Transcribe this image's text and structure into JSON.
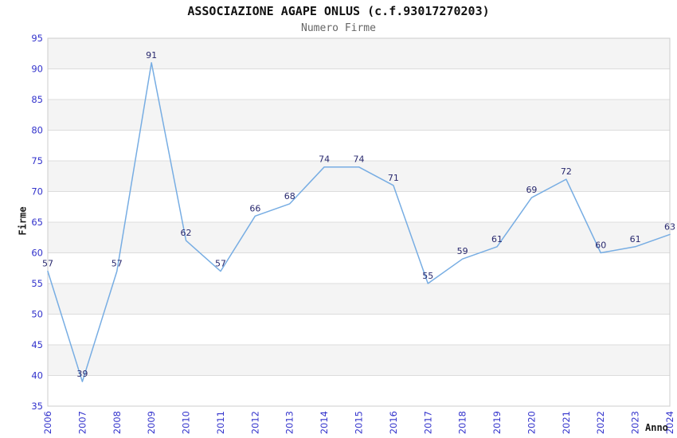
{
  "chart_data": {
    "type": "line",
    "title": "ASSOCIAZIONE AGAPE ONLUS (c.f.93017270203)",
    "subtitle": "Numero Firme",
    "xlabel": "Anno",
    "ylabel": "Firme",
    "x": [
      2006,
      2007,
      2008,
      2009,
      2010,
      2011,
      2012,
      2013,
      2014,
      2015,
      2016,
      2017,
      2018,
      2019,
      2020,
      2021,
      2022,
      2023,
      2024
    ],
    "series": [
      {
        "name": "Numero Firme",
        "values": [
          57,
          39,
          57,
          91,
          62,
          57,
          66,
          68,
          74,
          74,
          71,
          55,
          59,
          61,
          69,
          72,
          60,
          61,
          63
        ]
      }
    ],
    "ylim": [
      35,
      95
    ],
    "ytick_step": 5,
    "legend": "none",
    "grid": "horizontal-bands-alternating",
    "data_labels": "shown above each point",
    "colors": {
      "line": "#77ade3",
      "data_label": "#28286e",
      "tick_label": "#3333cc",
      "band_gray": "#f4f4f4",
      "band_white": "#ffffff",
      "grid_line": "#dcdcdc",
      "plot_border": "#cccccc",
      "title": "#111111",
      "subtitle": "#666666",
      "axis_title": "#1a1a1a",
      "background": "#ffffff"
    }
  }
}
